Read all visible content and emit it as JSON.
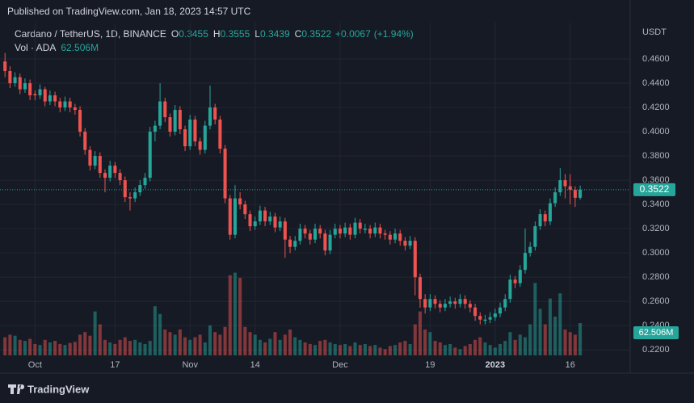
{
  "published": "Published on TradingView.com, Jan 18, 2023 14:57 UTC",
  "footer": "TradingView",
  "chart_data": {
    "type": "candlestick",
    "title": "Cardano / TetherUS, 1D, BINANCE",
    "legend": [
      {
        "label": "O",
        "value": 0.3455
      },
      {
        "label": "H",
        "value": 0.3555
      },
      {
        "label": "L",
        "value": 0.3439
      },
      {
        "label": "C",
        "value": 0.3522
      }
    ],
    "change": {
      "value": 0.0067,
      "label": "+0.0067"
    },
    "change_pct": {
      "value": 1.94,
      "label": "(+1.94%)"
    },
    "y_axis_label": "USDT",
    "up_color": "#26a69a",
    "down_color": "#ef5350",
    "ylim": [
      0.2155,
      0.49
    ],
    "yticks": [
      {
        "value": 0.22,
        "label": "0.2200"
      },
      {
        "value": 0.24,
        "label": "0.2400"
      },
      {
        "value": 0.26,
        "label": "0.2600"
      },
      {
        "value": 0.28,
        "label": "0.2800"
      },
      {
        "value": 0.3,
        "label": "0.3000"
      },
      {
        "value": 0.32,
        "label": "0.3200"
      },
      {
        "value": 0.34,
        "label": "0.3400"
      },
      {
        "value": 0.36,
        "label": "0.3600"
      },
      {
        "value": 0.38,
        "label": "0.3800"
      },
      {
        "value": 0.4,
        "label": "0.4000"
      },
      {
        "value": 0.42,
        "label": "0.4200"
      },
      {
        "value": 0.44,
        "label": "0.4400"
      },
      {
        "value": 0.46,
        "label": "0.4600"
      }
    ],
    "xlim": [
      -1,
      125
    ],
    "xticks": [
      {
        "value": 6,
        "label": "Oct"
      },
      {
        "value": 22,
        "label": "17"
      },
      {
        "value": 37,
        "label": "Nov"
      },
      {
        "value": 50,
        "label": "14"
      },
      {
        "value": 67,
        "label": "Dec"
      },
      {
        "value": 85,
        "label": "19"
      },
      {
        "value": 98,
        "label": "2023"
      },
      {
        "value": 113,
        "label": "16"
      }
    ],
    "candles": [
      [
        0.458,
        0.465,
        0.445,
        0.45
      ],
      [
        0.45,
        0.454,
        0.436,
        0.44
      ],
      [
        0.44,
        0.449,
        0.437,
        0.445
      ],
      [
        0.445,
        0.448,
        0.431,
        0.435
      ],
      [
        0.435,
        0.444,
        0.432,
        0.44
      ],
      [
        0.44,
        0.443,
        0.426,
        0.43
      ],
      [
        0.431,
        0.434,
        0.426,
        0.43
      ],
      [
        0.43,
        0.439,
        0.427,
        0.435
      ],
      [
        0.435,
        0.437,
        0.421,
        0.425
      ],
      [
        0.425,
        0.434,
        0.422,
        0.43
      ],
      [
        0.43,
        0.433,
        0.421,
        0.425
      ],
      [
        0.425,
        0.428,
        0.416,
        0.42
      ],
      [
        0.42,
        0.429,
        0.417,
        0.425
      ],
      [
        0.425,
        0.428,
        0.416,
        0.42
      ],
      [
        0.42,
        0.423,
        0.414,
        0.418
      ],
      [
        0.418,
        0.421,
        0.396,
        0.4
      ],
      [
        0.4,
        0.403,
        0.381,
        0.385
      ],
      [
        0.385,
        0.388,
        0.368,
        0.372
      ],
      [
        0.372,
        0.384,
        0.369,
        0.38
      ],
      [
        0.38,
        0.383,
        0.362,
        0.366
      ],
      [
        0.366,
        0.369,
        0.35,
        0.362
      ],
      [
        0.362,
        0.376,
        0.359,
        0.372
      ],
      [
        0.372,
        0.375,
        0.362,
        0.366
      ],
      [
        0.366,
        0.369,
        0.356,
        0.36
      ],
      [
        0.36,
        0.363,
        0.342,
        0.346
      ],
      [
        0.346,
        0.35,
        0.335,
        0.345
      ],
      [
        0.345,
        0.354,
        0.342,
        0.35
      ],
      [
        0.35,
        0.36,
        0.347,
        0.356
      ],
      [
        0.356,
        0.366,
        0.353,
        0.362
      ],
      [
        0.362,
        0.404,
        0.359,
        0.4
      ],
      [
        0.4,
        0.409,
        0.392,
        0.405
      ],
      [
        0.405,
        0.44,
        0.402,
        0.425
      ],
      [
        0.425,
        0.428,
        0.408,
        0.412
      ],
      [
        0.412,
        0.415,
        0.396,
        0.4
      ],
      [
        0.4,
        0.422,
        0.397,
        0.418
      ],
      [
        0.418,
        0.421,
        0.398,
        0.402
      ],
      [
        0.402,
        0.405,
        0.384,
        0.388
      ],
      [
        0.388,
        0.414,
        0.385,
        0.41
      ],
      [
        0.41,
        0.413,
        0.388,
        0.392
      ],
      [
        0.392,
        0.395,
        0.381,
        0.385
      ],
      [
        0.385,
        0.409,
        0.382,
        0.405
      ],
      [
        0.405,
        0.438,
        0.402,
        0.42
      ],
      [
        0.42,
        0.423,
        0.406,
        0.41
      ],
      [
        0.41,
        0.413,
        0.382,
        0.386
      ],
      [
        0.386,
        0.389,
        0.341,
        0.345
      ],
      [
        0.345,
        0.348,
        0.311,
        0.315
      ],
      [
        0.315,
        0.356,
        0.312,
        0.345
      ],
      [
        0.345,
        0.35,
        0.336,
        0.34
      ],
      [
        0.34,
        0.343,
        0.328,
        0.332
      ],
      [
        0.332,
        0.335,
        0.318,
        0.322
      ],
      [
        0.322,
        0.33,
        0.319,
        0.326
      ],
      [
        0.326,
        0.339,
        0.323,
        0.335
      ],
      [
        0.335,
        0.338,
        0.322,
        0.326
      ],
      [
        0.326,
        0.334,
        0.323,
        0.33
      ],
      [
        0.33,
        0.333,
        0.317,
        0.321
      ],
      [
        0.321,
        0.33,
        0.318,
        0.326
      ],
      [
        0.326,
        0.329,
        0.296,
        0.311
      ],
      [
        0.311,
        0.314,
        0.3,
        0.305
      ],
      [
        0.305,
        0.314,
        0.302,
        0.31
      ],
      [
        0.31,
        0.324,
        0.307,
        0.32
      ],
      [
        0.32,
        0.323,
        0.312,
        0.316
      ],
      [
        0.316,
        0.319,
        0.307,
        0.311
      ],
      [
        0.311,
        0.324,
        0.308,
        0.32
      ],
      [
        0.32,
        0.323,
        0.312,
        0.316
      ],
      [
        0.316,
        0.319,
        0.298,
        0.302
      ],
      [
        0.302,
        0.319,
        0.299,
        0.315
      ],
      [
        0.315,
        0.324,
        0.312,
        0.32
      ],
      [
        0.32,
        0.323,
        0.312,
        0.316
      ],
      [
        0.316,
        0.325,
        0.313,
        0.321
      ],
      [
        0.321,
        0.324,
        0.311,
        0.315
      ],
      [
        0.315,
        0.329,
        0.312,
        0.325
      ],
      [
        0.325,
        0.328,
        0.316,
        0.32
      ],
      [
        0.319,
        0.324,
        0.316,
        0.32
      ],
      [
        0.32,
        0.323,
        0.312,
        0.316
      ],
      [
        0.316,
        0.325,
        0.313,
        0.321
      ],
      [
        0.321,
        0.324,
        0.312,
        0.316
      ],
      [
        0.316,
        0.319,
        0.311,
        0.315
      ],
      [
        0.315,
        0.318,
        0.307,
        0.311
      ],
      [
        0.311,
        0.32,
        0.308,
        0.316
      ],
      [
        0.316,
        0.319,
        0.306,
        0.31
      ],
      [
        0.31,
        0.313,
        0.302,
        0.306
      ],
      [
        0.306,
        0.314,
        0.303,
        0.31
      ],
      [
        0.31,
        0.313,
        0.265,
        0.28
      ],
      [
        0.28,
        0.283,
        0.255,
        0.262
      ],
      [
        0.262,
        0.266,
        0.25,
        0.255
      ],
      [
        0.255,
        0.266,
        0.252,
        0.262
      ],
      [
        0.262,
        0.265,
        0.254,
        0.258
      ],
      [
        0.258,
        0.261,
        0.251,
        0.255
      ],
      [
        0.255,
        0.262,
        0.252,
        0.258
      ],
      [
        0.258,
        0.264,
        0.255,
        0.26
      ],
      [
        0.26,
        0.263,
        0.254,
        0.258
      ],
      [
        0.258,
        0.266,
        0.255,
        0.262
      ],
      [
        0.262,
        0.265,
        0.254,
        0.258
      ],
      [
        0.258,
        0.261,
        0.251,
        0.255
      ],
      [
        0.255,
        0.258,
        0.244,
        0.248
      ],
      [
        0.248,
        0.251,
        0.241,
        0.245
      ],
      [
        0.244,
        0.249,
        0.241,
        0.245
      ],
      [
        0.245,
        0.251,
        0.242,
        0.247
      ],
      [
        0.247,
        0.254,
        0.244,
        0.25
      ],
      [
        0.25,
        0.259,
        0.247,
        0.255
      ],
      [
        0.255,
        0.266,
        0.252,
        0.262
      ],
      [
        0.262,
        0.282,
        0.259,
        0.278
      ],
      [
        0.278,
        0.281,
        0.271,
        0.275
      ],
      [
        0.275,
        0.29,
        0.272,
        0.286
      ],
      [
        0.286,
        0.32,
        0.283,
        0.3
      ],
      [
        0.3,
        0.309,
        0.297,
        0.305
      ],
      [
        0.305,
        0.326,
        0.302,
        0.322
      ],
      [
        0.322,
        0.336,
        0.319,
        0.332
      ],
      [
        0.332,
        0.335,
        0.322,
        0.326
      ],
      [
        0.326,
        0.345,
        0.323,
        0.341
      ],
      [
        0.341,
        0.354,
        0.338,
        0.35
      ],
      [
        0.35,
        0.37,
        0.347,
        0.36
      ],
      [
        0.36,
        0.365,
        0.345,
        0.355
      ],
      [
        0.355,
        0.365,
        0.34,
        0.352
      ],
      [
        0.352,
        0.355,
        0.338,
        0.3455
      ],
      [
        0.3455,
        0.3555,
        0.3439,
        0.3522
      ]
    ],
    "volume": {
      "name": "Vol · ADA",
      "vlim": [
        0,
        200
      ],
      "values": [
        35,
        40,
        38,
        30,
        28,
        32,
        22,
        20,
        30,
        25,
        28,
        22,
        20,
        24,
        26,
        40,
        45,
        38,
        85,
        60,
        30,
        25,
        22,
        30,
        35,
        28,
        30,
        25,
        22,
        28,
        95,
        80,
        50,
        45,
        40,
        50,
        35,
        30,
        35,
        40,
        25,
        58,
        45,
        40,
        55,
        155,
        160,
        150,
        55,
        45,
        40,
        30,
        25,
        32,
        45,
        30,
        40,
        50,
        35,
        30,
        25,
        22,
        20,
        28,
        30,
        25,
        22,
        20,
        22,
        18,
        25,
        20,
        22,
        18,
        20,
        15,
        12,
        18,
        20,
        25,
        28,
        22,
        60,
        85,
        50,
        45,
        28,
        25,
        20,
        22,
        15,
        12,
        18,
        22,
        30,
        35,
        25,
        20,
        15,
        22,
        28,
        45,
        30,
        40,
        35,
        60,
        140,
        90,
        60,
        110,
        75,
        120,
        50,
        45,
        40,
        62.506
      ],
      "value_labels": [
        null,
        null,
        null,
        null,
        null,
        null,
        null,
        null,
        null,
        null,
        null,
        null,
        null,
        null,
        null,
        null,
        null,
        null,
        null,
        null,
        null,
        null,
        null,
        null,
        null,
        null,
        null,
        null,
        null,
        null,
        null,
        null,
        null,
        null,
        null,
        null,
        null,
        null,
        null,
        null,
        null,
        null,
        null,
        null,
        null,
        null,
        null,
        null,
        null,
        null,
        null,
        null,
        null,
        null,
        null,
        null,
        null,
        null,
        null,
        null,
        null,
        null,
        null,
        null,
        null,
        null,
        null,
        null,
        null,
        null,
        null,
        null,
        null,
        null,
        null,
        null,
        null,
        null,
        null,
        null,
        null,
        null,
        null,
        null,
        null,
        null,
        null,
        null,
        null,
        null,
        null,
        null,
        null,
        null,
        null,
        null,
        null,
        null,
        null,
        null,
        null,
        null,
        null,
        null,
        null,
        null,
        null,
        null,
        null,
        null,
        null,
        null,
        null,
        null,
        null,
        "62.506M"
      ]
    }
  }
}
